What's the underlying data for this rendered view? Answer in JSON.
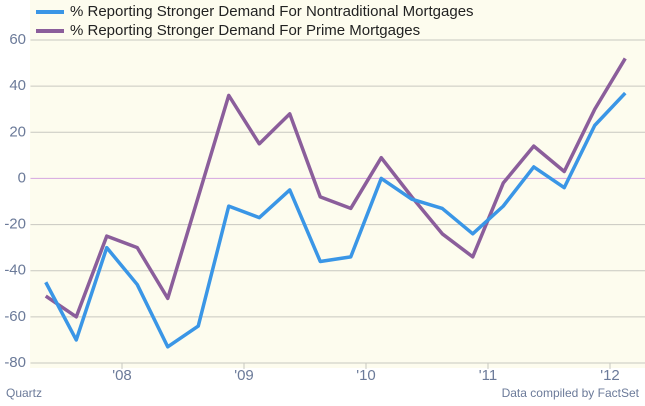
{
  "chart_data": {
    "type": "line",
    "x": [
      2007.375,
      2007.625,
      2007.875,
      2008.125,
      2008.375,
      2008.625,
      2008.875,
      2009.125,
      2009.375,
      2009.625,
      2009.875,
      2010.125,
      2010.375,
      2010.625,
      2010.875,
      2011.125,
      2011.375,
      2011.625,
      2011.875,
      2012.125
    ],
    "series": [
      {
        "name": "% Reporting Stronger Demand For Nontraditional Mortgages",
        "color": "#3a96e6",
        "values": [
          -45,
          -70,
          -30,
          -46,
          -73,
          -64,
          -12,
          -17,
          -5,
          -36,
          -34,
          0,
          -9,
          -13,
          -24,
          -12,
          5,
          -4,
          23,
          37
        ]
      },
      {
        "name": "% Reporting Stronger Demand For Prime Mortgages",
        "color": "#8b5e9b",
        "values": [
          -51,
          -60,
          -25,
          -30,
          -52,
          -8,
          36,
          15,
          28,
          -8,
          -13,
          9,
          -8,
          -24,
          -34,
          -2,
          14,
          3,
          30,
          52
        ]
      }
    ],
    "xlim": [
      2007.25,
      2012.25
    ],
    "xticks": [
      {
        "value": 2008,
        "label": "'08"
      },
      {
        "value": 2009,
        "label": "'09"
      },
      {
        "value": 2010,
        "label": "'10"
      },
      {
        "value": 2011,
        "label": "'11"
      },
      {
        "value": 2012,
        "label": "'12"
      }
    ],
    "ylim": [
      -80,
      60
    ],
    "yticks": [
      -80,
      -60,
      -40,
      -20,
      0,
      20,
      40,
      60
    ],
    "grid": true,
    "legend": "top-left",
    "source": "Quartz",
    "credit": "Data compiled by FactSet"
  }
}
